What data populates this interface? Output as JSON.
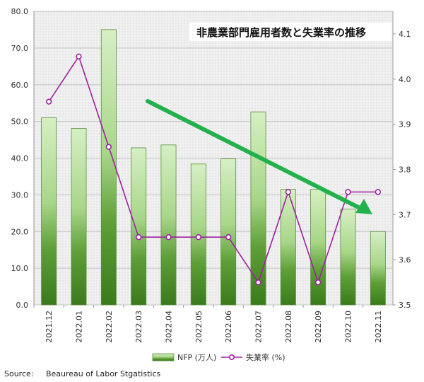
{
  "chart_data": {
    "type": "bar",
    "title": "非農業部門雇用者数と失業率の推移",
    "categories": [
      "2021.12",
      "2022.01",
      "2022.02",
      "2022.03",
      "2022.04",
      "2022.05",
      "2022.06",
      "2022.07",
      "2022.08",
      "2022.09",
      "2022.10",
      "2022.11"
    ],
    "series": [
      {
        "name": "NFP (万人)",
        "type": "bar",
        "axis": "left",
        "values": [
          51.0,
          48.1,
          75.0,
          42.8,
          43.6,
          38.4,
          39.8,
          52.6,
          31.5,
          31.5,
          26.1,
          20.0
        ]
      },
      {
        "name": "失業率 (%)",
        "type": "line",
        "axis": "right",
        "values": [
          3.95,
          4.05,
          3.85,
          3.65,
          3.65,
          3.65,
          3.65,
          3.55,
          3.75,
          3.55,
          3.75,
          3.75
        ]
      }
    ],
    "y_left": {
      "min": 0,
      "max": 80,
      "step": 10,
      "tick_labels": [
        "0.0",
        "10.0",
        "20.0",
        "30.0",
        "40.0",
        "50.0",
        "60.0",
        "70.0",
        "80.0"
      ]
    },
    "y_right": {
      "min": 3.5,
      "max": 4.15,
      "ticks": [
        3.5,
        3.6,
        3.7,
        3.8,
        3.9,
        4.0,
        4.1
      ],
      "tick_labels": [
        "3.5",
        "3.6",
        "3.7",
        "3.8",
        "3.9",
        "4.0",
        "4.1"
      ]
    },
    "grid": true,
    "legend_position": "bottom",
    "annotation": {
      "type": "trend-arrow",
      "color": "#22b14c"
    },
    "colors": {
      "bar_light": "#c8e6b0",
      "bar_dark": "#3f7f1f",
      "bar_stroke": "#5a8f3c",
      "line": "#a020a0",
      "marker_fill": "#ffffff",
      "arrow": "#22b14c"
    }
  },
  "source": "Source:     Beaureau of Labor Stgatistics"
}
